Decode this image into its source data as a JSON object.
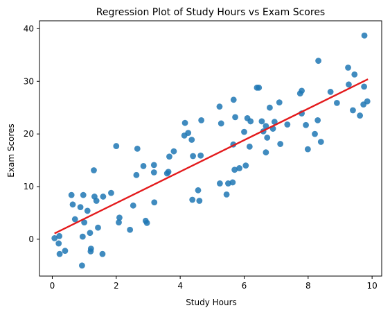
{
  "chart_data": {
    "type": "scatter",
    "title": "Regression Plot of Study Hours vs Exam Scores",
    "xlabel": "Study Hours",
    "ylabel": "Exam Scores",
    "xlim": [
      -0.4,
      10.3
    ],
    "ylim": [
      -7,
      41.5
    ],
    "xticks": [
      0,
      2,
      4,
      6,
      8,
      10
    ],
    "yticks": [
      0,
      10,
      20,
      30,
      40
    ],
    "grid": false,
    "legend": false,
    "point_color": "#1f77b4",
    "line_color": "#e31a1c",
    "points": [
      [
        0.07,
        0.2
      ],
      [
        0.2,
        -0.8
      ],
      [
        0.22,
        0.6
      ],
      [
        0.23,
        -2.8
      ],
      [
        0.4,
        -2.2
      ],
      [
        0.6,
        8.4
      ],
      [
        0.64,
        6.6
      ],
      [
        0.71,
        3.8
      ],
      [
        0.88,
        6.1
      ],
      [
        0.93,
        -5.0
      ],
      [
        0.95,
        0.5
      ],
      [
        0.97,
        8.4
      ],
      [
        1.0,
        3.2
      ],
      [
        1.1,
        5.4
      ],
      [
        1.18,
        1.2
      ],
      [
        1.2,
        -2.3
      ],
      [
        1.21,
        -1.8
      ],
      [
        1.3,
        13.1
      ],
      [
        1.32,
        8.1
      ],
      [
        1.38,
        7.3
      ],
      [
        1.43,
        2.2
      ],
      [
        1.57,
        -2.8
      ],
      [
        1.59,
        8.1
      ],
      [
        1.84,
        8.8
      ],
      [
        2.0,
        17.7
      ],
      [
        2.08,
        3.2
      ],
      [
        2.1,
        4.1
      ],
      [
        2.43,
        1.8
      ],
      [
        2.53,
        6.4
      ],
      [
        2.63,
        12.2
      ],
      [
        2.66,
        17.2
      ],
      [
        2.85,
        13.9
      ],
      [
        2.92,
        3.5
      ],
      [
        2.96,
        3.1
      ],
      [
        3.18,
        12.7
      ],
      [
        3.18,
        14.1
      ],
      [
        3.19,
        7.0
      ],
      [
        3.59,
        12.5
      ],
      [
        3.63,
        12.8
      ],
      [
        3.66,
        15.7
      ],
      [
        3.8,
        16.7
      ],
      [
        4.13,
        19.7
      ],
      [
        4.15,
        22.1
      ],
      [
        4.25,
        20.2
      ],
      [
        4.36,
        18.9
      ],
      [
        4.38,
        7.5
      ],
      [
        4.4,
        15.8
      ],
      [
        4.56,
        9.3
      ],
      [
        4.6,
        7.3
      ],
      [
        4.64,
        15.9
      ],
      [
        4.66,
        22.6
      ],
      [
        5.23,
        25.2
      ],
      [
        5.24,
        10.6
      ],
      [
        5.28,
        22.0
      ],
      [
        5.45,
        8.5
      ],
      [
        5.5,
        10.6
      ],
      [
        5.64,
        10.8
      ],
      [
        5.66,
        18.0
      ],
      [
        5.67,
        26.5
      ],
      [
        5.7,
        13.2
      ],
      [
        5.72,
        23.2
      ],
      [
        5.85,
        13.5
      ],
      [
        6.0,
        20.4
      ],
      [
        6.05,
        14.0
      ],
      [
        6.1,
        23.0
      ],
      [
        6.17,
        17.6
      ],
      [
        6.2,
        22.4
      ],
      [
        6.4,
        28.8
      ],
      [
        6.46,
        28.8
      ],
      [
        6.55,
        22.4
      ],
      [
        6.6,
        20.5
      ],
      [
        6.68,
        21.5
      ],
      [
        6.68,
        16.5
      ],
      [
        6.72,
        19.3
      ],
      [
        6.8,
        25.0
      ],
      [
        6.9,
        21.0
      ],
      [
        6.95,
        22.3
      ],
      [
        7.1,
        26.0
      ],
      [
        7.13,
        18.1
      ],
      [
        7.35,
        21.8
      ],
      [
        7.75,
        27.7
      ],
      [
        7.8,
        23.9
      ],
      [
        7.8,
        28.2
      ],
      [
        7.93,
        21.7
      ],
      [
        7.99,
        17.1
      ],
      [
        8.21,
        20.0
      ],
      [
        8.3,
        22.6
      ],
      [
        8.32,
        33.9
      ],
      [
        8.4,
        18.5
      ],
      [
        8.7,
        28.0
      ],
      [
        8.9,
        25.9
      ],
      [
        9.25,
        32.6
      ],
      [
        9.27,
        29.4
      ],
      [
        9.4,
        24.5
      ],
      [
        9.45,
        31.3
      ],
      [
        9.62,
        23.5
      ],
      [
        9.73,
        25.6
      ],
      [
        9.75,
        29.0
      ],
      [
        9.76,
        38.7
      ],
      [
        9.85,
        26.2
      ]
    ],
    "regression_line": {
      "x": [
        0.07,
        9.87
      ],
      "y": [
        1.1,
        30.4
      ]
    }
  }
}
